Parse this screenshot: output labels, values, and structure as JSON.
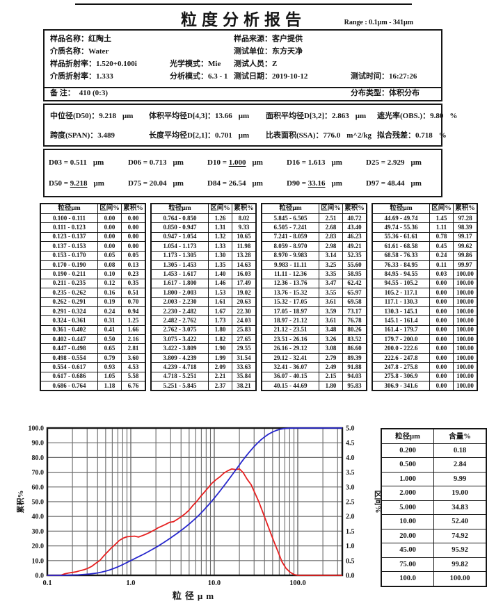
{
  "report": {
    "title": "粒度分析报告",
    "range_label": "Range : 0.1μm - 341μm"
  },
  "info": {
    "sample_name": {
      "label": "样品名称：",
      "value": "红陶土"
    },
    "sample_source": {
      "label": "样品来源：",
      "value": "客户提供"
    },
    "medium_name": {
      "label": "介质名称：",
      "value": "Water"
    },
    "test_unit": {
      "label": "测试单位：",
      "value": "东方天净"
    },
    "sample_ri": {
      "label": "样品折射率：",
      "value": "1.520+0.100i"
    },
    "optical_mode": {
      "label": "光学模式：",
      "value": "Mie"
    },
    "tester": {
      "label": "测试人员：",
      "value": "Z"
    },
    "medium_ri": {
      "label": "介质折射率：",
      "value": "1.333"
    },
    "analysis_mode": {
      "label": "分析模式：",
      "value": "6.3 - 1"
    },
    "test_date": {
      "label": "测试日期：",
      "value": "2019-10-12"
    },
    "test_time": {
      "label": "测试时间：",
      "value": "16:27:26"
    },
    "remark": {
      "label": "备 注：",
      "value": "410  (0:3)"
    },
    "dist_type": {
      "label": "分布类型：",
      "value": "体积分布"
    }
  },
  "stats": {
    "rows": [
      [
        {
          "label": "中位径(D50)：",
          "value": "9.218",
          "unit": "μm"
        },
        {
          "label": "体积平均径D[4,3]：",
          "value": "13.66",
          "unit": "μm"
        },
        {
          "label": "面积平均径D[3,2]：",
          "value": "2.863",
          "unit": "μm"
        },
        {
          "label": "遮光率(OBS.)：",
          "value": "9.80",
          "unit": "%"
        }
      ],
      [
        {
          "label": "跨度(SPAN)：",
          "value": "3.489",
          "unit": ""
        },
        {
          "label": "长度平均径D[2,1]：",
          "value": "0.701",
          "unit": "μm"
        },
        {
          "label": "比表面积(SSA)：",
          "value": "776.0",
          "unit": "m^2/kg"
        },
        {
          "label": "拟合残差：",
          "value": "0.718",
          "unit": "%"
        }
      ]
    ]
  },
  "dvalues": [
    {
      "name": "D03",
      "value": "0.511",
      "unit": "μm",
      "underline": false
    },
    {
      "name": "D06",
      "value": "0.713",
      "unit": "μm",
      "underline": false
    },
    {
      "name": "D10",
      "value": "1.000",
      "unit": "μm",
      "underline": true
    },
    {
      "name": "D16",
      "value": "1.613",
      "unit": "μm",
      "underline": false
    },
    {
      "name": "D25",
      "value": "2.929",
      "unit": "μm",
      "underline": false
    },
    {
      "name": "D50",
      "value": "9.218",
      "unit": "μm",
      "underline": true
    },
    {
      "name": "D75",
      "value": "20.04",
      "unit": "μm",
      "underline": false
    },
    {
      "name": "D84",
      "value": "26.54",
      "unit": "μm",
      "underline": false
    },
    {
      "name": "D90",
      "value": "33.16",
      "unit": "μm",
      "underline": true
    },
    {
      "name": "D97",
      "value": "48.44",
      "unit": "μm",
      "underline": false
    }
  ],
  "distribution_table": {
    "headers": [
      "粒径μm",
      "区间%",
      "累积%"
    ],
    "groups": 4,
    "rows_per_group": 19
  },
  "side_table": {
    "headers": [
      "粒径μm",
      "含量%"
    ],
    "sizes": [
      0.2,
      0.5,
      1.0,
      2.0,
      5.0,
      10.0,
      20.0,
      45.0,
      75.0,
      100.0
    ],
    "contents": [
      0.18,
      2.84,
      9.99,
      19.0,
      34.83,
      52.4,
      74.92,
      95.92,
      99.82,
      100.0
    ]
  },
  "chart_data": {
    "type": "line",
    "title": "",
    "xlabel": "粒径μm",
    "ylabel_left": "累积%",
    "ylabel_right": "区间%",
    "x_scale": "log",
    "xlim": [
      0.1,
      341.6
    ],
    "ylim_left": [
      0,
      100
    ],
    "left_tick_step": 10,
    "ylim_right": [
      0,
      5
    ],
    "right_tick_step": 0.5,
    "x_tick_values": [
      0.1,
      1,
      10,
      100
    ],
    "x_tick_labels": [
      "0.1",
      "1.0",
      "10.0",
      "100.0"
    ],
    "grid": true,
    "legend": "none",
    "colors": {
      "cumulative": "#2626cc",
      "interval": "#e62020",
      "grid": "#6a6a6a",
      "axis": "#161616"
    },
    "bin_edges": [
      0.1,
      0.111,
      0.123,
      0.137,
      0.153,
      0.17,
      0.19,
      0.211,
      0.235,
      0.262,
      0.291,
      0.324,
      0.361,
      0.402,
      0.447,
      0.498,
      0.554,
      0.617,
      0.686,
      0.764,
      0.85,
      0.947,
      1.054,
      1.173,
      1.305,
      1.453,
      1.617,
      1.8,
      2.003,
      2.23,
      2.482,
      2.762,
      3.075,
      3.422,
      3.809,
      4.239,
      4.718,
      5.251,
      5.845,
      6.505,
      7.241,
      8.059,
      8.97,
      9.983,
      11.11,
      12.36,
      13.76,
      15.32,
      17.05,
      18.97,
      21.12,
      23.51,
      26.16,
      29.12,
      32.41,
      36.07,
      40.15,
      44.69,
      49.74,
      55.36,
      61.61,
      68.58,
      76.33,
      84.95,
      94.55,
      105.2,
      117.1,
      130.3,
      145.1,
      161.4,
      179.7,
      200.0,
      222.6,
      247.8,
      275.8,
      306.9,
      341.6
    ],
    "series": [
      {
        "name": "累积%",
        "kind": "cumulative",
        "axis": "left",
        "values": [
          0.0,
          0.0,
          0.0,
          0.0,
          0.05,
          0.13,
          0.23,
          0.35,
          0.51,
          0.7,
          0.94,
          1.25,
          1.66,
          2.16,
          2.81,
          3.6,
          4.53,
          5.58,
          6.76,
          8.02,
          9.33,
          10.65,
          11.98,
          13.28,
          14.63,
          16.03,
          17.49,
          19.02,
          20.63,
          22.3,
          24.03,
          25.83,
          27.65,
          29.55,
          31.54,
          33.63,
          35.84,
          38.21,
          40.72,
          43.4,
          46.23,
          49.21,
          52.35,
          55.6,
          58.95,
          62.42,
          65.97,
          69.58,
          73.17,
          76.78,
          80.26,
          83.52,
          86.6,
          89.39,
          91.88,
          94.03,
          95.83,
          97.28,
          98.39,
          99.17,
          99.62,
          99.86,
          99.97,
          100.0,
          100.0,
          100.0,
          100.0,
          100.0,
          100.0,
          100.0,
          100.0,
          100.0,
          100.0,
          100.0,
          100.0,
          100.0
        ]
      },
      {
        "name": "区间%",
        "kind": "interval",
        "axis": "right",
        "values": [
          0.0,
          0.0,
          0.0,
          0.0,
          0.05,
          0.08,
          0.1,
          0.12,
          0.16,
          0.19,
          0.24,
          0.31,
          0.41,
          0.5,
          0.65,
          0.79,
          0.93,
          1.05,
          1.18,
          1.26,
          1.31,
          1.32,
          1.33,
          1.3,
          1.35,
          1.4,
          1.46,
          1.53,
          1.61,
          1.67,
          1.73,
          1.8,
          1.82,
          1.9,
          1.99,
          2.09,
          2.21,
          2.37,
          2.51,
          2.68,
          2.83,
          2.98,
          3.14,
          3.25,
          3.35,
          3.47,
          3.55,
          3.61,
          3.59,
          3.61,
          3.48,
          3.26,
          3.08,
          2.79,
          2.49,
          2.15,
          1.8,
          1.45,
          1.11,
          0.78,
          0.45,
          0.24,
          0.11,
          0.03,
          0.0,
          0.0,
          0.0,
          0.0,
          0.0,
          0.0,
          0.0,
          0.0,
          0.0,
          0.0,
          0.0,
          0.0
        ]
      }
    ]
  }
}
